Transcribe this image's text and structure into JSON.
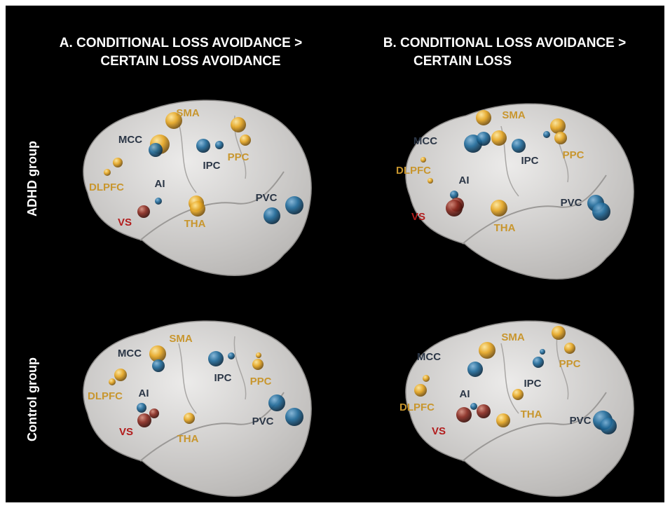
{
  "columns": [
    {
      "title_line1": "A. CONDITIONAL LOSS AVOIDANCE >",
      "title_line2": "CERTAIN LOSS AVOIDANCE"
    },
    {
      "title_line1": "B. CONDITIONAL LOSS AVOIDANCE >",
      "title_line2": "CERTAIN LOSS"
    }
  ],
  "rows": [
    "ADHD group",
    "Control group"
  ],
  "panels": [
    {
      "labels": [
        "SMA",
        "MCC",
        "PPC",
        "IPC",
        "DLPFC",
        "AI",
        "VS",
        "THA",
        "PVC"
      ]
    },
    {
      "labels": [
        "SMA",
        "MCC",
        "PPC",
        "IPC",
        "DLPFC",
        "AI",
        "VS",
        "THA",
        "PVC"
      ]
    },
    {
      "labels": [
        "SMA",
        "MCC",
        "IPC",
        "PPC",
        "DLPFC",
        "AI",
        "VS",
        "THA",
        "PVC"
      ]
    },
    {
      "labels": [
        "SMA",
        "MCC",
        "PPC",
        "IPC",
        "DLPFC",
        "AI",
        "VS",
        "THA",
        "PVC"
      ]
    }
  ]
}
